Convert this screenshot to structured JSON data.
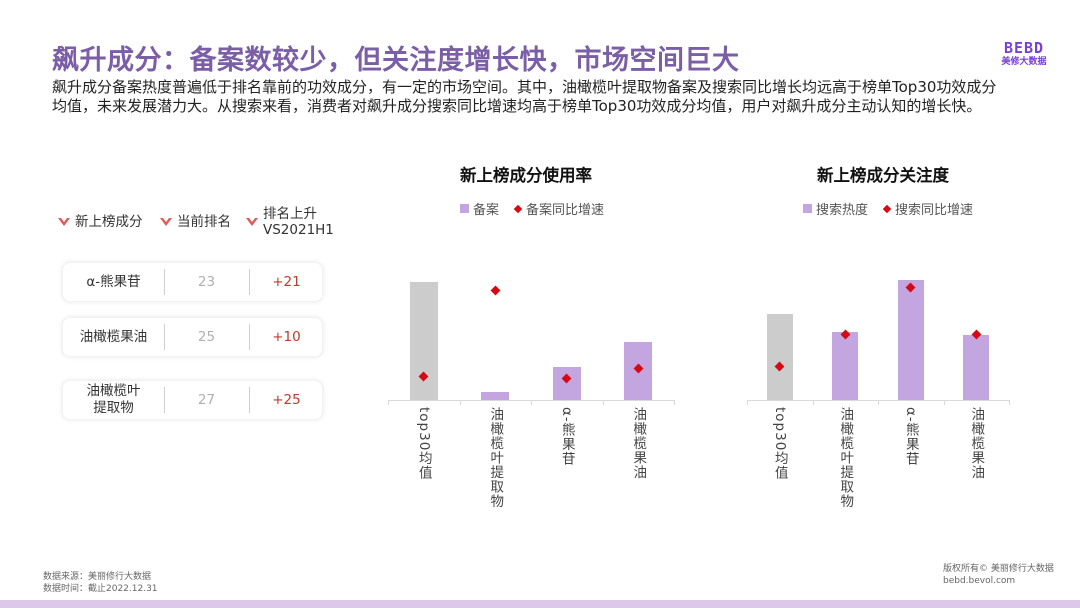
{
  "header": {
    "title": "飙升成分：备案数较少，但关注度增长快，市场空间巨大",
    "logo_mark": "BEBD",
    "logo_sub": "美修大数据",
    "intro": "飙升成分备案热度普遍低于排名靠前的功效成分，有一定的市场空间。其中，油橄榄叶提取物备案及搜索同比增长均远高于榜单Top30功效成分均值，未来发展潜力大。从搜索来看，消费者对飙升成分搜索同比增速均高于榜单Top30功效成分均值，用户对飙升成分主动认知的增长快。"
  },
  "ranking_table": {
    "headers": [
      "新上榜成分",
      "当前排名",
      "排名上升\nVS2021H1"
    ],
    "header_line1": [
      "新上榜成分",
      "当前排名",
      "排名上升"
    ],
    "header_line2": [
      "",
      "",
      "VS2021H1"
    ],
    "rows": [
      {
        "ingredient": "α-熊果苷",
        "rank": "23",
        "rise": "+21"
      },
      {
        "ingredient": "油橄榄果油",
        "rank": "25",
        "rise": "+10"
      },
      {
        "ingredient": "油橄榄叶\n提取物",
        "rank": "27",
        "rise": "+25"
      }
    ]
  },
  "chart_data": [
    {
      "type": "bar",
      "title": "新上榜成分使用率",
      "categories": [
        "top30均值",
        "油橄榄叶提取物",
        "α-熊果苷",
        "油橄榄果油"
      ],
      "series": [
        {
          "name": "备案",
          "kind": "bar",
          "values": [
            108,
            7,
            30,
            53
          ],
          "colors": [
            "#cccccc",
            "#c3a6e0",
            "#c3a6e0",
            "#c3a6e0"
          ]
        },
        {
          "name": "备案同比增速",
          "kind": "marker-diamond",
          "values": [
            22,
            100,
            20,
            29
          ],
          "color": "#d60a14"
        }
      ],
      "legend": [
        "备案",
        "备案同比增速"
      ],
      "legend_position": "top",
      "ylim": [
        0,
        110
      ],
      "grid": false,
      "note": "values are relative pixel heights; no numeric axis shown"
    },
    {
      "type": "bar",
      "title": "新上榜成分关注度",
      "categories": [
        "top30均值",
        "油橄榄叶提取物",
        "α-熊果苷",
        "油橄榄果油"
      ],
      "series": [
        {
          "name": "搜索热度",
          "kind": "bar",
          "values": [
            79,
            62,
            110,
            60
          ],
          "colors": [
            "#cccccc",
            "#c3a6e0",
            "#c3a6e0",
            "#c3a6e0"
          ]
        },
        {
          "name": "搜索同比增速",
          "kind": "marker-diamond",
          "values": [
            31,
            60,
            103,
            60
          ],
          "color": "#d60a14"
        }
      ],
      "legend": [
        "搜索热度",
        "搜索同比增速"
      ],
      "legend_position": "top",
      "ylim": [
        0,
        110
      ],
      "grid": false,
      "note": "values are relative pixel heights; no numeric axis shown"
    }
  ],
  "footer": {
    "source": "数据来源：美丽修行大数据",
    "date": "数据时间：截止2022.12.31",
    "copyright": "版权所有© 美丽修行大数据",
    "website": "bebd.bevol.com"
  },
  "colors": {
    "title": "#7b5fa6",
    "logo": "#7a3fd9",
    "bar_highlight": "#c3a6e0",
    "bar_baseline": "#cccccc",
    "marker": "#d60a14",
    "rise_text": "#c0392b",
    "chevron": "#e05a5a",
    "bottom_band": "#dcc8ea"
  }
}
